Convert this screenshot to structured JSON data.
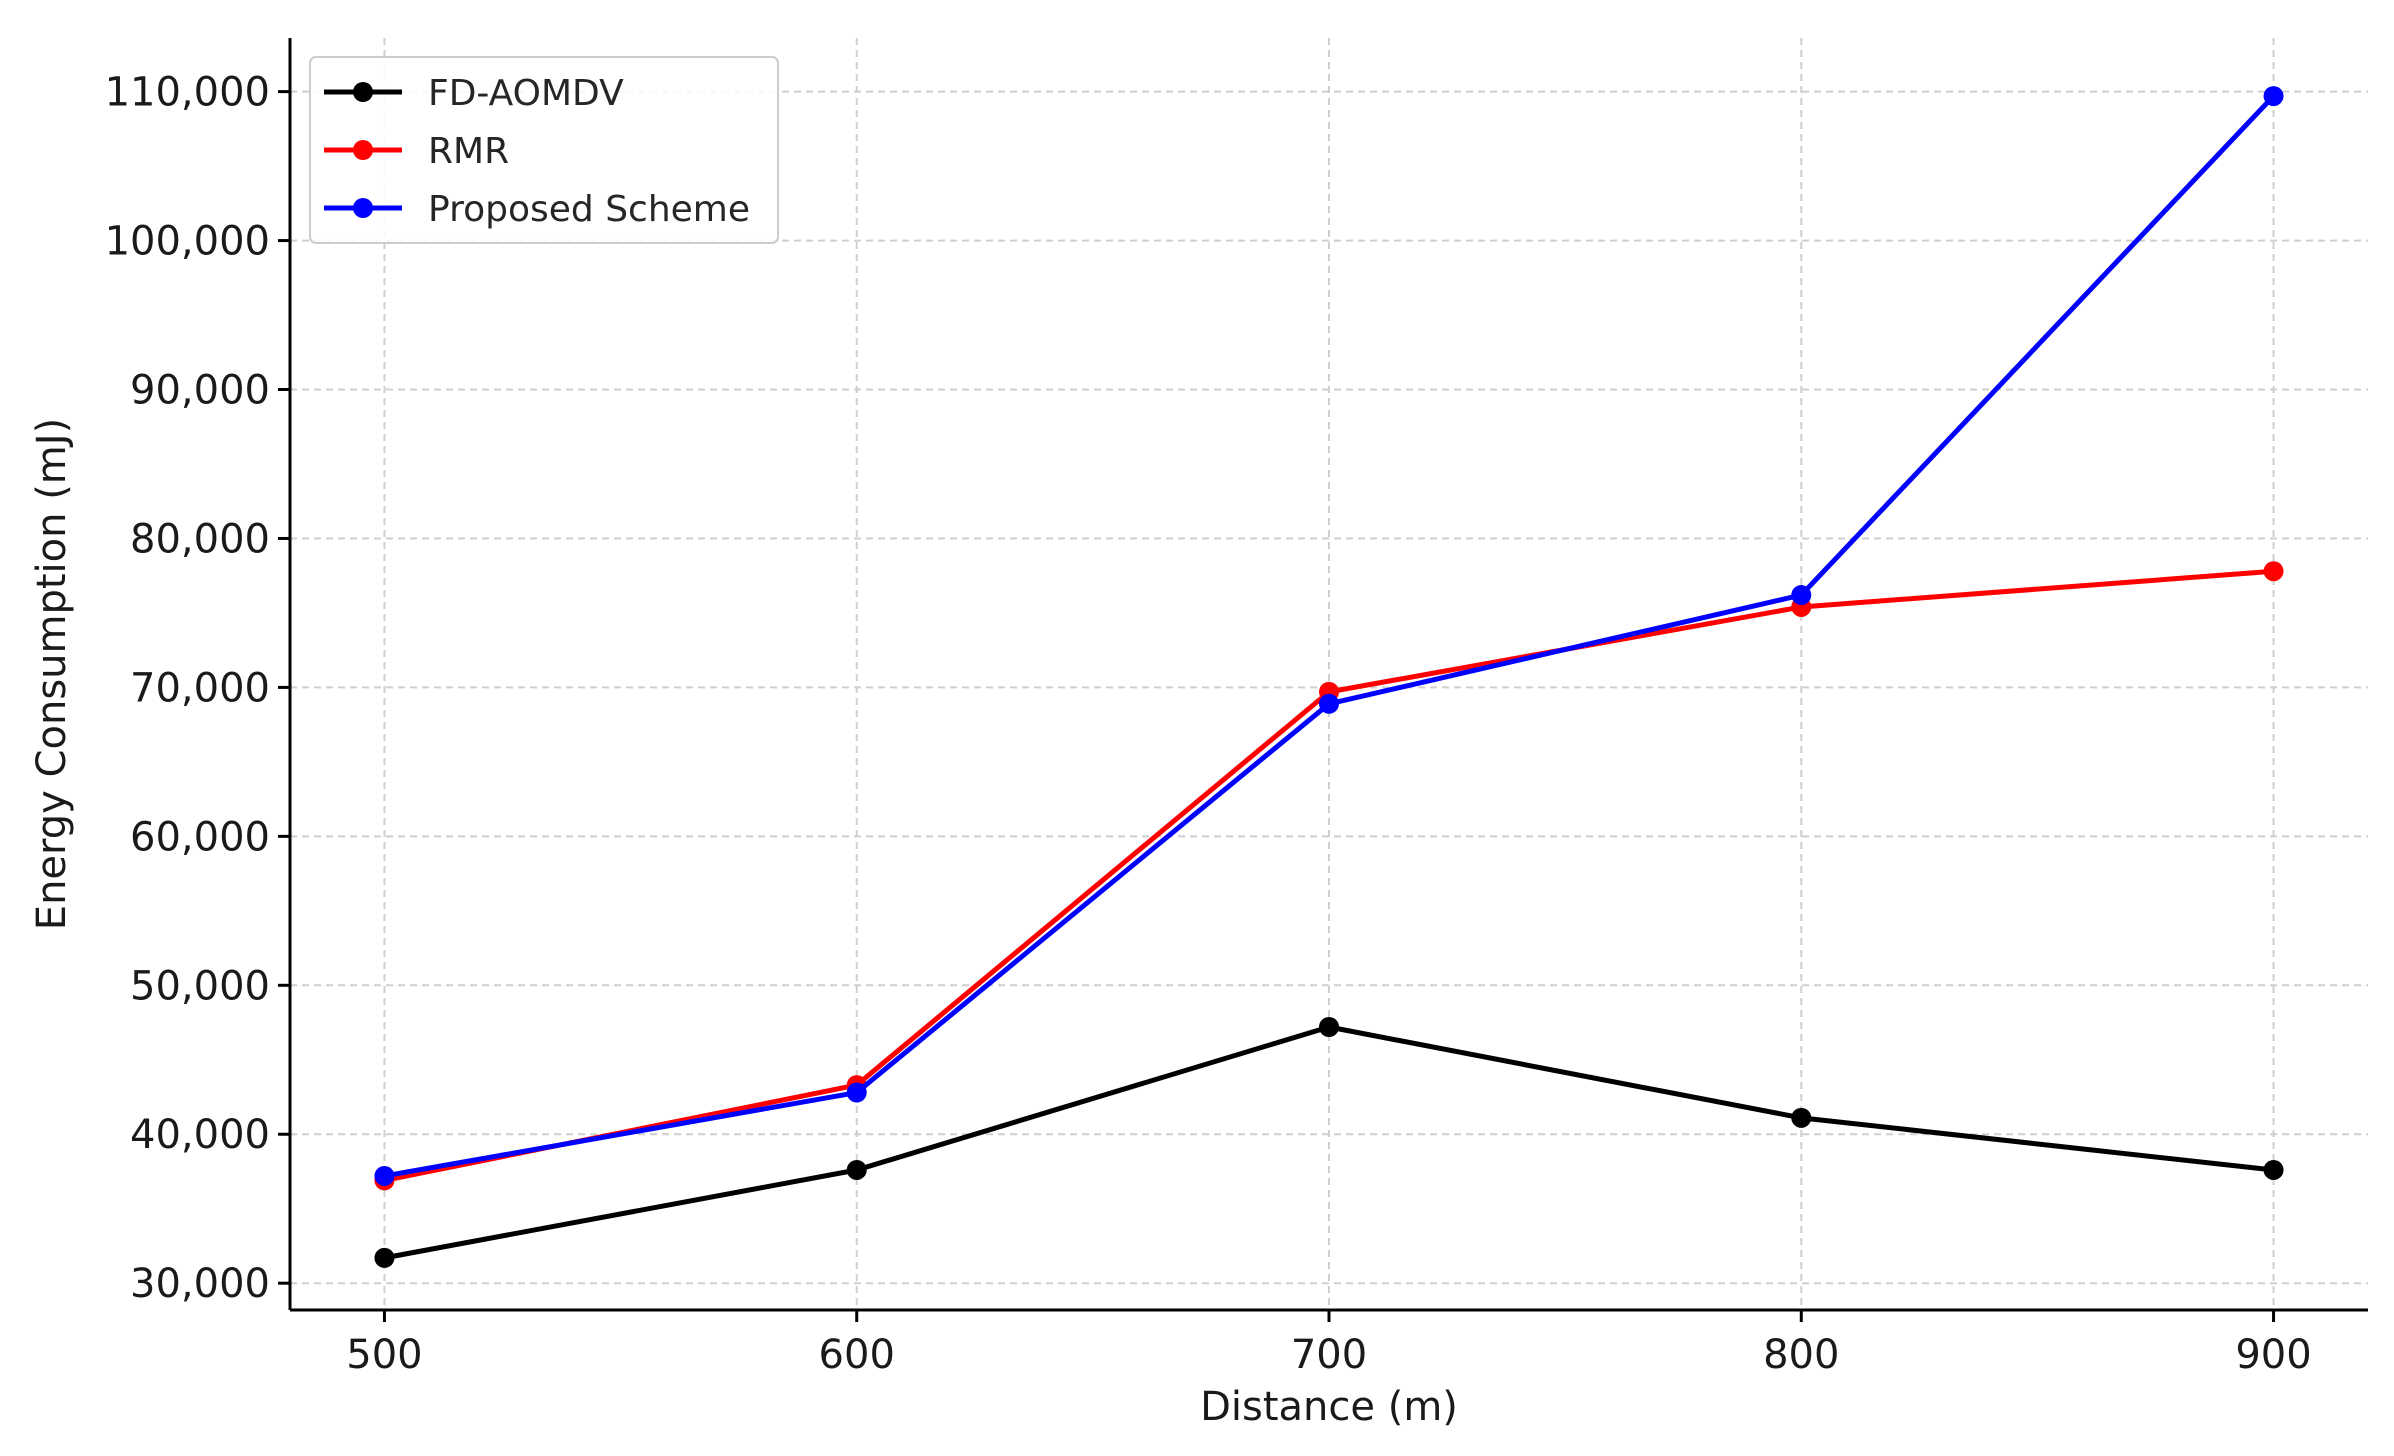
{
  "chart_data": {
    "type": "line",
    "title": "",
    "xlabel": "Distance (m)",
    "ylabel": "Energy Consumption (mJ)",
    "x": [
      500,
      600,
      700,
      800,
      900
    ],
    "x_tick_labels": [
      "500",
      "600",
      "700",
      "800",
      "900"
    ],
    "xlim": [
      480,
      920
    ],
    "ylim": [
      28200,
      113600
    ],
    "y_ticks": [
      30000,
      40000,
      50000,
      60000,
      70000,
      80000,
      90000,
      100000,
      110000
    ],
    "y_tick_labels": [
      "30,000",
      "40,000",
      "50,000",
      "60,000",
      "70,000",
      "80,000",
      "90,000",
      "100,000",
      "110,000"
    ],
    "grid": true,
    "legend_position": "top-left",
    "series": [
      {
        "name": "FD-AOMDV",
        "color": "#000000",
        "values": [
          31700,
          37600,
          47200,
          41100,
          37600
        ]
      },
      {
        "name": "RMR",
        "color": "#ff0000",
        "values": [
          36900,
          43300,
          69700,
          75400,
          77800
        ]
      },
      {
        "name": "Proposed Scheme",
        "color": "#0000ff",
        "values": [
          37200,
          42800,
          68900,
          76200,
          109700
        ]
      }
    ]
  }
}
